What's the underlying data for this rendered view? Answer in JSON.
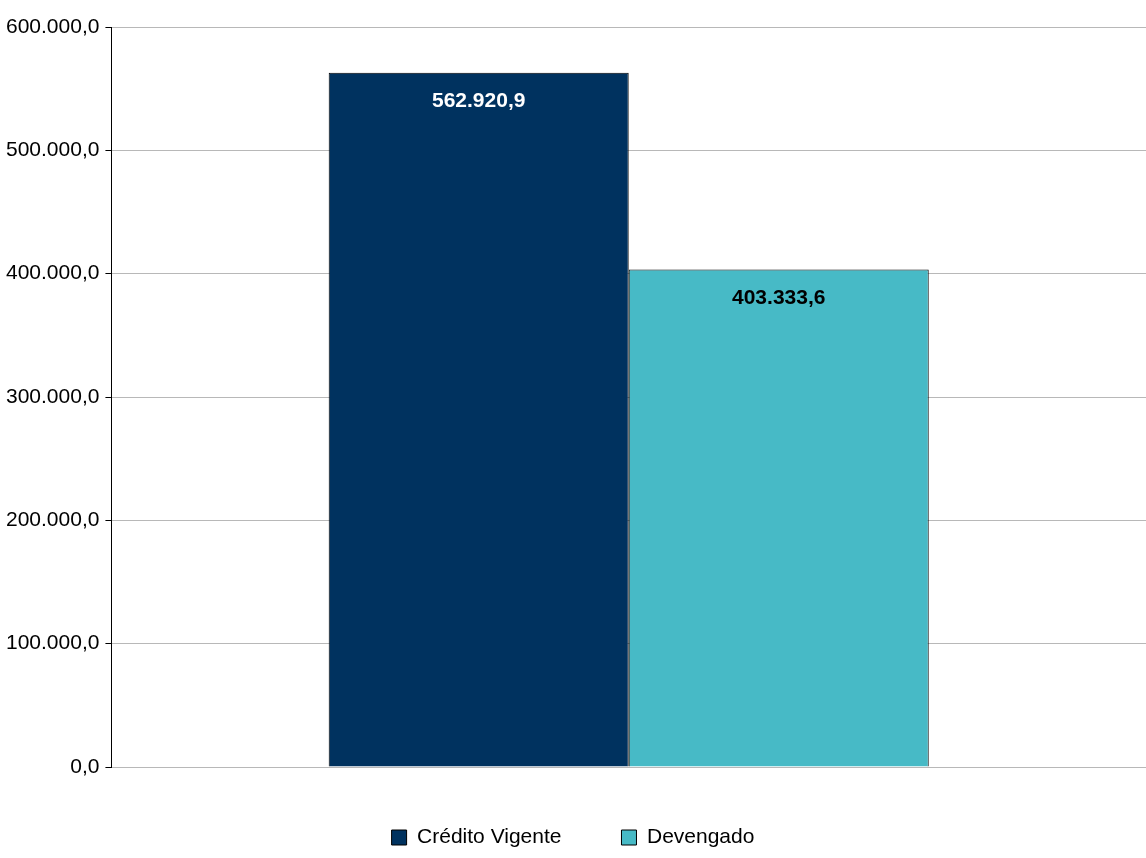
{
  "chart_data": {
    "type": "bar",
    "categories": [
      null
    ],
    "series": [
      {
        "name": "Crédito Vigente",
        "color": "#00325f",
        "values": [
          562920.9
        ],
        "value_labels": [
          "562.920,9"
        ]
      },
      {
        "name": "Devengado",
        "color": "#47bac6",
        "values": [
          403333.6
        ],
        "value_labels": [
          "403.333,6"
        ]
      }
    ],
    "ylim": [
      0,
      600000
    ],
    "yticks": [
      {
        "value": 0,
        "label": "0,0"
      },
      {
        "value": 100000,
        "label": "100.000,0"
      },
      {
        "value": 200000,
        "label": "200.000,0"
      },
      {
        "value": 300000,
        "label": "300.000,0"
      },
      {
        "value": 400000,
        "label": "400.000,0"
      },
      {
        "value": 500000,
        "label": "500.000,0"
      },
      {
        "value": 600000,
        "label": "600.000,0"
      }
    ],
    "grid": "y",
    "legend": "bottom"
  }
}
